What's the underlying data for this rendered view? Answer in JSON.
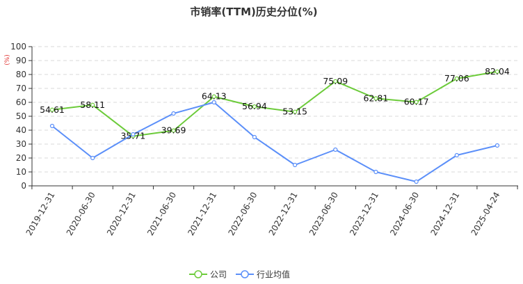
{
  "chart_data": {
    "type": "line",
    "title": "市销率(TTM)历史分位(%)",
    "ylabel": "(%)",
    "ylim": [
      0,
      100
    ],
    "yticks": [
      0,
      10,
      20,
      30,
      40,
      50,
      60,
      70,
      80,
      90,
      100
    ],
    "categories": [
      "2019-12-31",
      "2020-06-30",
      "2020-12-31",
      "2021-06-30",
      "2021-12-31",
      "2022-06-30",
      "2022-12-31",
      "2023-06-30",
      "2023-12-31",
      "2024-06-30",
      "2024-12-31",
      "2025-04-24"
    ],
    "series": [
      {
        "name": "公司",
        "color": "#6ccb3a",
        "values": [
          54.61,
          58.11,
          35.71,
          39.69,
          64.13,
          56.94,
          53.15,
          75.09,
          62.81,
          60.17,
          77.06,
          82.04
        ],
        "labels": [
          "54.61",
          "58.11",
          "35.71",
          "39.69",
          "64.13",
          "56.94",
          "53.15",
          "75.09",
          "62.81",
          "60.17",
          "77.06",
          "82.04"
        ]
      },
      {
        "name": "行业均值",
        "color": "#5b8ff9",
        "values": [
          43,
          20,
          37,
          52,
          60,
          35,
          15,
          26,
          10,
          3,
          22,
          29
        ]
      }
    ],
    "grid": true,
    "legend": "bottom-center"
  }
}
